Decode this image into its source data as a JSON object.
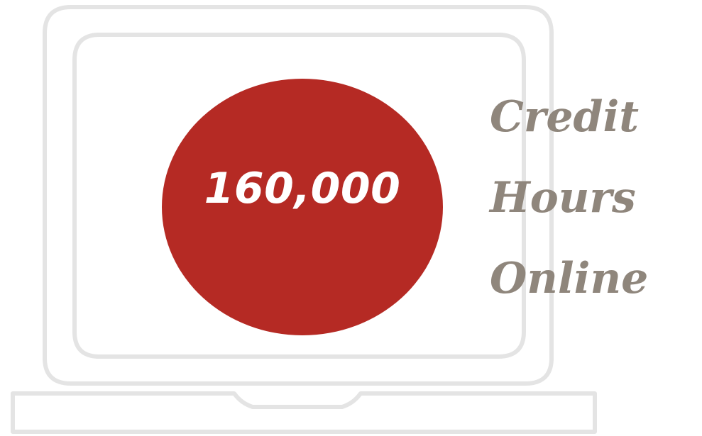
{
  "stat": {
    "value": "160,000",
    "caption_lines": [
      "Credit",
      "Hours",
      "Online"
    ]
  },
  "colors": {
    "circle": "#b52a24",
    "caption": "#8f867c",
    "outline": "#e4e4e4"
  },
  "icons": {
    "laptop": "laptop-outline-icon"
  }
}
